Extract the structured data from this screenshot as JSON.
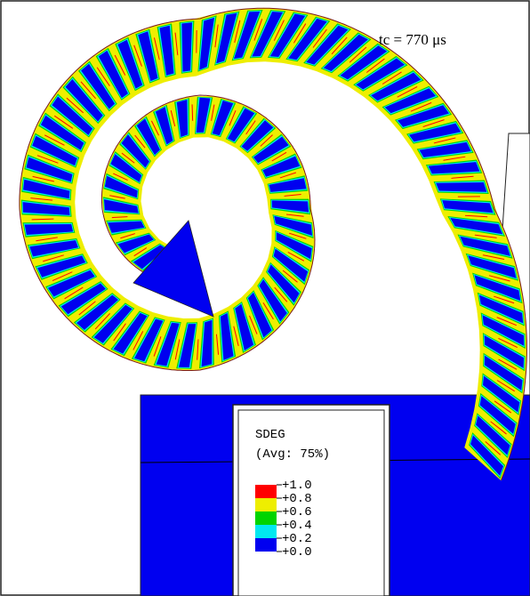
{
  "time_label": "tc = 770 μs",
  "legend": {
    "title": "SDEG",
    "subtitle": "(Avg: 75%)",
    "levels": [
      "+1.0",
      "+0.8",
      "+0.6",
      "+0.4",
      "+0.2",
      "+0.0"
    ],
    "colors": [
      "#ff0000",
      "#eeee00",
      "#00d400",
      "#00e8f0",
      "#0000f0"
    ]
  }
}
